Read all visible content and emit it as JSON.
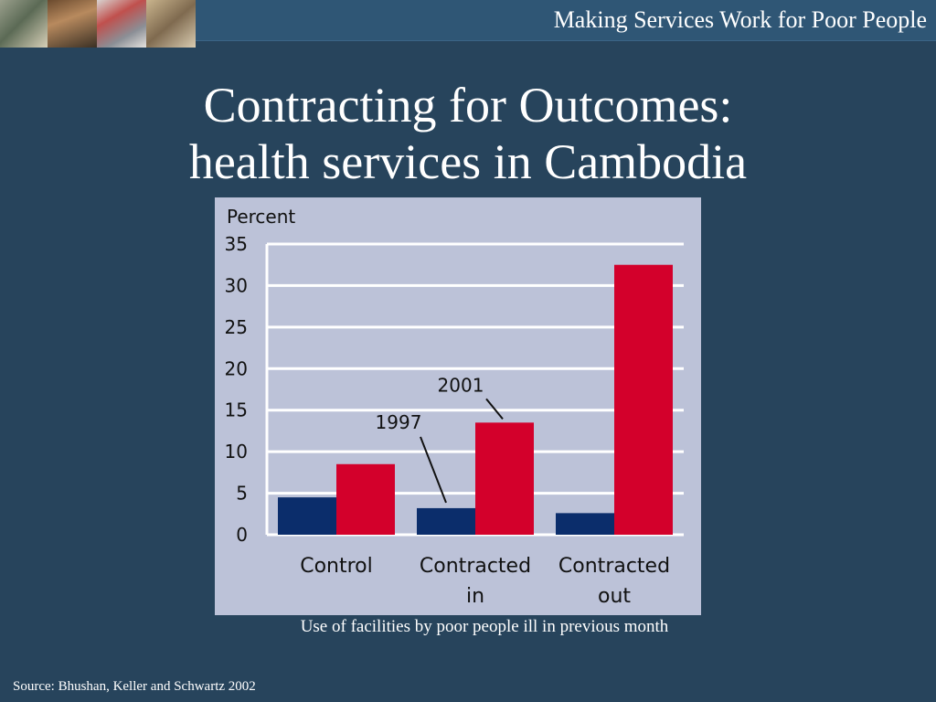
{
  "header": {
    "text": "Making Services Work for Poor People",
    "photos": [
      "photo-strip-image",
      "photo-strip-image",
      "photo-strip-image",
      "photo-strip-image"
    ]
  },
  "slide": {
    "title_line1": "Contracting for Outcomes:",
    "title_line2": "health services in Cambodia",
    "caption": "Use of facilities by poor people ill in previous month",
    "source": "Source: Bhushan, Keller and Schwartz 2002"
  },
  "chart_data": {
    "type": "bar",
    "ylabel": "Percent",
    "ylim": [
      0,
      35
    ],
    "yticks": [
      0,
      5,
      10,
      15,
      20,
      25,
      30,
      35
    ],
    "categories": [
      [
        "Control"
      ],
      [
        "Contracted",
        "in"
      ],
      [
        "Contracted",
        "out"
      ]
    ],
    "series": [
      {
        "name": "1997",
        "values": [
          4.5,
          3.2,
          2.6
        ],
        "color": "#0b2d6b"
      },
      {
        "name": "2001",
        "values": [
          8.5,
          13.5,
          32.5
        ],
        "color": "#d3002b"
      }
    ],
    "grid": true,
    "annotations": [
      {
        "text": "1997",
        "series": 0,
        "category": 1
      },
      {
        "text": "2001",
        "series": 1,
        "category": 1
      }
    ]
  },
  "colors": {
    "background": "#27445c",
    "topbar": "#2f5675",
    "panel": "#bcc2d8",
    "grid": "#ffffff",
    "text": "#ffffff",
    "axis_text": "#111111"
  }
}
